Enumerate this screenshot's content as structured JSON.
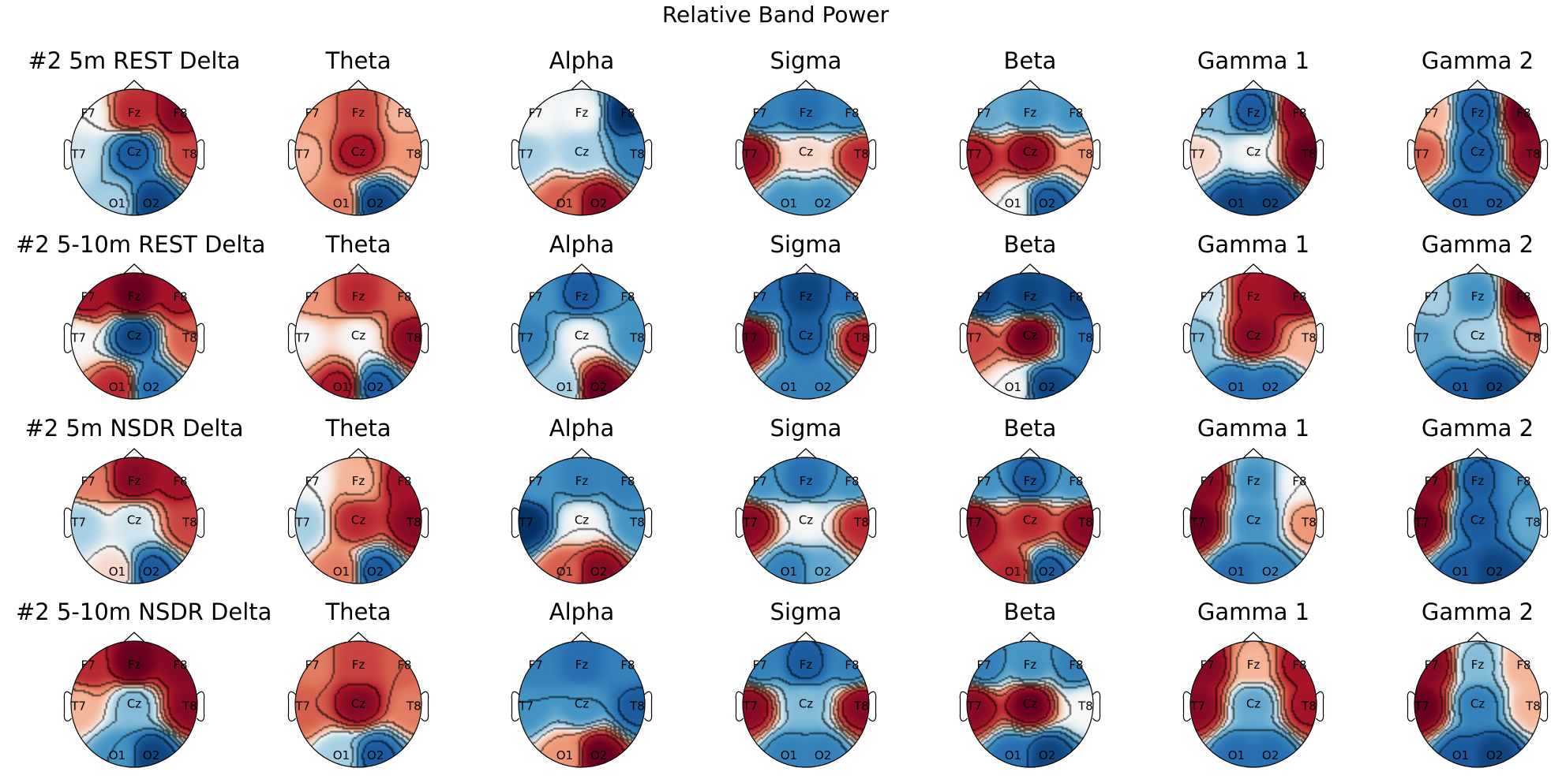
{
  "chart_data": {
    "type": "heatmap",
    "title": "Relative Band Power",
    "sensors": [
      "F7",
      "Fz",
      "F8",
      "T7",
      "Cz",
      "T8",
      "O1",
      "O2"
    ],
    "bands": [
      "Delta",
      "Theta",
      "Alpha",
      "Sigma",
      "Beta",
      "Gamma 1",
      "Gamma 2"
    ],
    "colormap": "RdBu_r (red = high, blue = low)",
    "rows": [
      {
        "condition": "#2 5m REST",
        "panel_titles": [
          "#2 5m REST Delta",
          "Theta",
          "Alpha",
          "Sigma",
          "Beta",
          "Gamma 1",
          "Gamma 2"
        ],
        "values": [
          [
            0.0,
            0.7,
            0.9,
            -0.1,
            -0.8,
            0.6,
            -0.2,
            -0.9
          ],
          [
            0.3,
            0.6,
            0.2,
            0.2,
            0.8,
            0.3,
            0.4,
            -0.9
          ],
          [
            0.0,
            0.0,
            -1.0,
            -0.2,
            -0.2,
            -0.6,
            0.5,
            0.9
          ],
          [
            -0.6,
            -0.7,
            -0.6,
            0.9,
            0.1,
            0.7,
            -0.5,
            -0.5
          ],
          [
            -0.4,
            -0.5,
            -0.5,
            0.8,
            0.9,
            0.3,
            0.0,
            -0.8
          ],
          [
            -0.3,
            -0.8,
            0.9,
            0.1,
            0.0,
            1.0,
            -0.9,
            -0.9
          ],
          [
            0.2,
            -0.8,
            1.0,
            0.5,
            -0.8,
            0.9,
            -0.8,
            -0.8
          ]
        ]
      },
      {
        "condition": "#2 5-10m REST",
        "panel_titles": [
          "#2 5-10m REST Delta",
          "Theta",
          "Alpha",
          "Sigma",
          "Beta",
          "Gamma 1",
          "Gamma 2"
        ],
        "values": [
          [
            0.8,
            1.0,
            0.8,
            0.0,
            -0.9,
            0.5,
            0.7,
            -0.7
          ],
          [
            0.3,
            0.7,
            0.5,
            0.0,
            0.0,
            0.9,
            0.8,
            -0.8
          ],
          [
            -0.5,
            -0.8,
            -0.5,
            -0.6,
            0.0,
            -0.5,
            -0.2,
            1.0
          ],
          [
            -0.7,
            -0.9,
            -0.7,
            1.0,
            -0.8,
            0.8,
            -0.6,
            -0.6
          ],
          [
            -0.9,
            -0.9,
            -0.9,
            0.6,
            1.0,
            -0.7,
            0.0,
            -0.9
          ],
          [
            -0.1,
            0.8,
            0.9,
            -0.3,
            0.9,
            0.2,
            -0.7,
            -0.7
          ],
          [
            -0.2,
            -0.5,
            1.0,
            -0.4,
            -0.2,
            0.5,
            -0.8,
            -0.9
          ]
        ]
      },
      {
        "condition": "#2 5m NSDR",
        "panel_titles": [
          "#2 5m NSDR Delta",
          "Theta",
          "Alpha",
          "Sigma",
          "Beta",
          "Gamma 1",
          "Gamma 2"
        ],
        "values": [
          [
            0.4,
            0.9,
            0.8,
            -0.2,
            -0.1,
            0.6,
            0.1,
            -0.8
          ],
          [
            0.0,
            0.2,
            0.8,
            -0.2,
            0.7,
            0.9,
            0.4,
            -0.8
          ],
          [
            -0.5,
            -0.6,
            -0.6,
            -1.0,
            0.0,
            -0.5,
            0.5,
            0.9
          ],
          [
            -0.5,
            -0.7,
            -0.5,
            0.9,
            0.0,
            0.7,
            -0.6,
            -0.4
          ],
          [
            -0.5,
            -0.8,
            -0.5,
            0.9,
            0.7,
            0.9,
            0.7,
            -0.8
          ],
          [
            0.9,
            -0.5,
            0.0,
            1.0,
            -0.5,
            0.3,
            -0.7,
            -0.6
          ],
          [
            0.9,
            -0.8,
            -0.5,
            1.0,
            -0.8,
            -0.4,
            -0.8,
            -0.9
          ]
        ]
      },
      {
        "condition": "#2 5-10m NSDR",
        "panel_titles": [
          "#2 5-10m NSDR Delta",
          "Theta",
          "Alpha",
          "Sigma",
          "Beta",
          "Gamma 1",
          "Gamma 2"
        ],
        "values": [
          [
            0.7,
            1.0,
            0.9,
            0.2,
            -0.3,
            0.9,
            -0.5,
            -0.9
          ],
          [
            0.4,
            0.6,
            0.5,
            0.5,
            0.9,
            0.4,
            -0.2,
            -0.8
          ],
          [
            -0.6,
            -0.7,
            -0.6,
            -0.5,
            -0.5,
            -0.8,
            0.3,
            1.0
          ],
          [
            -0.6,
            -0.8,
            -0.6,
            0.9,
            -0.3,
            0.9,
            -0.6,
            -0.6
          ],
          [
            -0.6,
            -0.5,
            -0.6,
            0.9,
            1.0,
            0.0,
            -0.7,
            -0.9
          ],
          [
            0.9,
            0.2,
            0.8,
            0.9,
            -0.4,
            0.8,
            -0.7,
            -0.7
          ],
          [
            0.9,
            -0.3,
            0.2,
            1.0,
            -0.6,
            0.2,
            -0.8,
            -0.9
          ]
        ]
      }
    ]
  }
}
